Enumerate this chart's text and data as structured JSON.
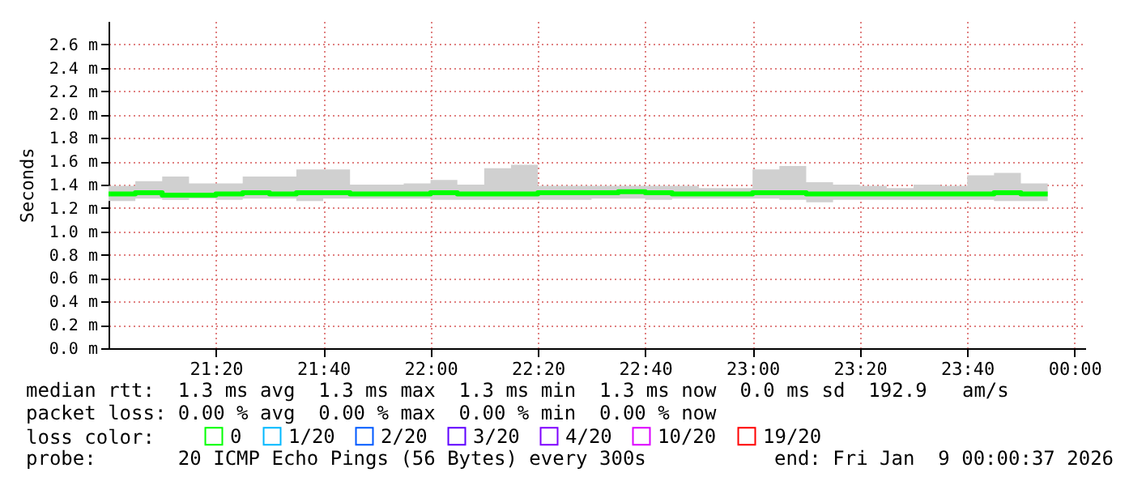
{
  "chart_data": {
    "type": "step",
    "ylabel": "Seconds",
    "x": [
      21,
      21.0833,
      21.1667,
      21.25,
      21.3333,
      21.4167,
      21.5,
      21.5833,
      21.6667,
      21.75,
      21.8333,
      21.9167,
      22,
      22.0833,
      22.1667,
      22.25,
      22.3333,
      22.4167,
      22.5,
      22.5833,
      22.6667,
      22.75,
      22.8333,
      22.9167,
      23,
      23.0833,
      23.1667,
      23.25,
      23.3333,
      23.4167,
      23.5,
      23.5833,
      23.6667,
      23.75,
      23.8333,
      23.9167
    ],
    "xlim": [
      21,
      24.0333
    ],
    "xticks": [
      {
        "value": 21.3333,
        "label": "21:20"
      },
      {
        "value": 21.6667,
        "label": "21:40"
      },
      {
        "value": 22,
        "label": "22:00"
      },
      {
        "value": 22.3333,
        "label": "22:20"
      },
      {
        "value": 22.6667,
        "label": "22:40"
      },
      {
        "value": 23,
        "label": "23:00"
      },
      {
        "value": 23.3333,
        "label": "23:20"
      },
      {
        "value": 23.6667,
        "label": "23:40"
      },
      {
        "value": 24,
        "label": "00:00"
      }
    ],
    "ylim": [
      0,
      2.8
    ],
    "yticks": [
      {
        "value": 0,
        "label": "0.0 m"
      },
      {
        "value": 0.2,
        "label": "0.2 m"
      },
      {
        "value": 0.4,
        "label": "0.4 m"
      },
      {
        "value": 0.6,
        "label": "0.6 m"
      },
      {
        "value": 0.8,
        "label": "0.8 m"
      },
      {
        "value": 1.0,
        "label": "1.0 m"
      },
      {
        "value": 1.2,
        "label": "1.2 m"
      },
      {
        "value": 1.4,
        "label": "1.4 m"
      },
      {
        "value": 1.6,
        "label": "1.6 m"
      },
      {
        "value": 1.8,
        "label": "1.8 m"
      },
      {
        "value": 2.0,
        "label": "2.0 m"
      },
      {
        "value": 2.2,
        "label": "2.2 m"
      },
      {
        "value": 2.4,
        "label": "2.4 m"
      },
      {
        "value": 2.6,
        "label": "2.6 m"
      }
    ],
    "grid": true,
    "legend": "bottom",
    "legend_title": "loss color:",
    "series": [
      {
        "name": "0",
        "color": "#00ff00",
        "values": [
          1.32,
          1.33,
          1.31,
          1.31,
          1.32,
          1.33,
          1.32,
          1.33,
          1.33,
          1.32,
          1.32,
          1.32,
          1.33,
          1.32,
          1.32,
          1.32,
          1.33,
          1.33,
          1.33,
          1.34,
          1.33,
          1.32,
          1.32,
          1.32,
          1.33,
          1.33,
          1.32,
          1.32,
          1.32,
          1.32,
          1.32,
          1.32,
          1.32,
          1.33,
          1.32,
          1.32
        ],
        "lower": [
          1.26,
          1.28,
          1.27,
          1.28,
          1.27,
          1.28,
          1.28,
          1.26,
          1.28,
          1.28,
          1.28,
          1.28,
          1.27,
          1.27,
          1.27,
          1.27,
          1.27,
          1.27,
          1.28,
          1.28,
          1.27,
          1.28,
          1.28,
          1.28,
          1.28,
          1.27,
          1.25,
          1.27,
          1.27,
          1.27,
          1.27,
          1.27,
          1.27,
          1.26,
          1.26,
          1.26
        ],
        "upper": [
          1.39,
          1.43,
          1.47,
          1.41,
          1.41,
          1.47,
          1.47,
          1.53,
          1.53,
          1.4,
          1.4,
          1.41,
          1.44,
          1.4,
          1.54,
          1.57,
          1.39,
          1.39,
          1.39,
          1.39,
          1.39,
          1.39,
          1.37,
          1.37,
          1.53,
          1.56,
          1.42,
          1.4,
          1.39,
          1.37,
          1.4,
          1.39,
          1.48,
          1.5,
          1.41,
          1.41
        ]
      },
      {
        "name": "1/20",
        "color": "#00b8ff",
        "values": [
          null,
          null,
          null,
          null,
          null,
          null,
          null,
          null,
          null,
          null,
          null,
          null,
          null,
          null,
          null,
          null,
          null,
          null,
          null,
          null,
          null,
          null,
          null,
          null,
          null,
          null,
          null,
          null,
          null,
          null,
          null,
          null,
          null,
          null,
          null,
          null
        ]
      },
      {
        "name": "2/20",
        "color": "#0059ff",
        "values": [
          null,
          null,
          null,
          null,
          null,
          null,
          null,
          null,
          null,
          null,
          null,
          null,
          null,
          null,
          null,
          null,
          null,
          null,
          null,
          null,
          null,
          null,
          null,
          null,
          null,
          null,
          null,
          null,
          null,
          null,
          null,
          null,
          null,
          null,
          null,
          null
        ]
      },
      {
        "name": "3/20",
        "color": "#5e00ff",
        "values": [
          null,
          null,
          null,
          null,
          null,
          null,
          null,
          null,
          null,
          null,
          null,
          null,
          null,
          null,
          null,
          null,
          null,
          null,
          null,
          null,
          null,
          null,
          null,
          null,
          null,
          null,
          null,
          null,
          null,
          null,
          null,
          null,
          null,
          null,
          null,
          null
        ]
      },
      {
        "name": "4/20",
        "color": "#7e00ff",
        "values": [
          null,
          null,
          null,
          null,
          null,
          null,
          null,
          null,
          null,
          null,
          null,
          null,
          null,
          null,
          null,
          null,
          null,
          null,
          null,
          null,
          null,
          null,
          null,
          null,
          null,
          null,
          null,
          null,
          null,
          null,
          null,
          null,
          null,
          null,
          null,
          null
        ]
      },
      {
        "name": "10/20",
        "color": "#dd00ff",
        "values": [
          null,
          null,
          null,
          null,
          null,
          null,
          null,
          null,
          null,
          null,
          null,
          null,
          null,
          null,
          null,
          null,
          null,
          null,
          null,
          null,
          null,
          null,
          null,
          null,
          null,
          null,
          null,
          null,
          null,
          null,
          null,
          null,
          null,
          null,
          null,
          null
        ]
      },
      {
        "name": "19/20",
        "color": "#ff0000",
        "values": [
          null,
          null,
          null,
          null,
          null,
          null,
          null,
          null,
          null,
          null,
          null,
          null,
          null,
          null,
          null,
          null,
          null,
          null,
          null,
          null,
          null,
          null,
          null,
          null,
          null,
          null,
          null,
          null,
          null,
          null,
          null,
          null,
          null,
          null,
          null,
          null
        ]
      }
    ],
    "annotations": [
      "median rtt:  1.3 ms avg  1.3 ms max  1.3 ms min  1.3 ms now  0.0 ms sd  192.9   am/s",
      "packet loss: 0.00 % avg  0.00 % max  0.00 % min  0.00 % now",
      "probe:       20 ICMP Echo Pings (56 Bytes) every 300s",
      "end: Fri Jan  9 00:00:37 2026"
    ]
  }
}
